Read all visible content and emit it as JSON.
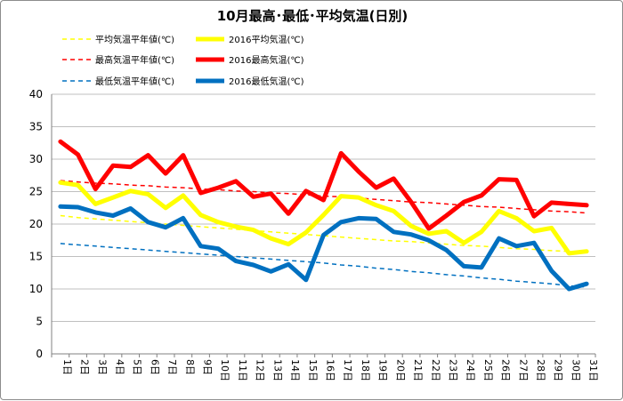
{
  "chart_data": {
    "type": "line",
    "title": "10月最高･最低･平均気温(日別)",
    "ylim": [
      0,
      40
    ],
    "yticks": [
      0,
      5,
      10,
      15,
      20,
      25,
      30,
      35,
      40
    ],
    "grid": "horizontal",
    "legend_position": "top",
    "categories": [
      "1日",
      "2日",
      "3日",
      "4日",
      "5日",
      "6日",
      "7日",
      "8日",
      "9日",
      "10日",
      "11日",
      "12日",
      "13日",
      "14日",
      "15日",
      "16日",
      "17日",
      "18日",
      "19日",
      "20日",
      "21日",
      "22日",
      "23日",
      "24日",
      "25日",
      "26日",
      "27日",
      "28日",
      "29日",
      "30日",
      "31日"
    ],
    "series": [
      {
        "name": "平均気温平年値(℃)",
        "color": "#ffff00",
        "style": "dashed",
        "values": [
          21.3,
          21.0,
          20.8,
          20.6,
          20.4,
          20.2,
          20.0,
          19.8,
          19.6,
          19.4,
          19.2,
          19.0,
          18.8,
          18.6,
          18.4,
          18.2,
          18.0,
          17.8,
          17.6,
          17.4,
          17.3,
          17.1,
          16.9,
          16.7,
          16.6,
          16.4,
          16.2,
          16.1,
          15.9,
          15.8,
          15.6
        ]
      },
      {
        "name": "2016平均気温(℃)",
        "color": "#ffff00",
        "style": "solid",
        "values": [
          26.4,
          26.0,
          23.1,
          24.1,
          25.1,
          24.6,
          22.5,
          24.4,
          21.4,
          20.3,
          19.6,
          19.1,
          17.8,
          16.9,
          18.7,
          21.4,
          24.3,
          24.1,
          22.9,
          22.0,
          19.7,
          18.5,
          18.9,
          17.1,
          18.8,
          22.0,
          20.9,
          18.9,
          19.4,
          15.5,
          15.8
        ]
      },
      {
        "name": "最高気温平年値(℃)",
        "color": "#ff0000",
        "style": "dashed",
        "values": [
          26.7,
          26.5,
          26.3,
          26.2,
          26.0,
          25.9,
          25.7,
          25.6,
          25.4,
          25.3,
          25.1,
          25.0,
          24.8,
          24.7,
          24.5,
          24.3,
          24.2,
          24.0,
          23.8,
          23.6,
          23.4,
          23.3,
          23.1,
          22.9,
          22.7,
          22.6,
          22.4,
          22.2,
          22.0,
          21.9,
          21.7
        ]
      },
      {
        "name": "2016最高気温(℃)",
        "color": "#ff0000",
        "style": "solid",
        "values": [
          32.7,
          30.7,
          25.4,
          29.0,
          28.8,
          30.6,
          27.8,
          30.6,
          24.8,
          25.6,
          26.6,
          24.2,
          24.7,
          21.6,
          25.1,
          23.7,
          30.9,
          28.1,
          25.6,
          27.0,
          23.4,
          19.3,
          21.3,
          23.4,
          24.4,
          26.9,
          26.8,
          21.2,
          23.3,
          23.1,
          22.9
        ]
      },
      {
        "name": "最低気温平年値(℃)",
        "color": "#0070c0",
        "style": "dashed",
        "values": [
          17.0,
          16.8,
          16.6,
          16.4,
          16.2,
          16.0,
          15.8,
          15.6,
          15.4,
          15.2,
          15.0,
          14.8,
          14.6,
          14.4,
          14.2,
          14.0,
          13.7,
          13.5,
          13.2,
          13.0,
          12.7,
          12.5,
          12.2,
          12.0,
          11.7,
          11.5,
          11.2,
          11.0,
          10.8,
          10.5,
          10.3
        ]
      },
      {
        "name": "2016最低気温(℃)",
        "color": "#0070c0",
        "style": "solid",
        "values": [
          22.7,
          22.6,
          21.8,
          21.3,
          22.4,
          20.3,
          19.5,
          20.9,
          16.6,
          16.2,
          14.3,
          13.7,
          12.7,
          13.8,
          11.4,
          18.3,
          20.3,
          20.9,
          20.8,
          18.8,
          18.4,
          17.5,
          16.0,
          13.5,
          13.3,
          17.8,
          16.6,
          17.1,
          12.8,
          10.0,
          10.8
        ]
      }
    ]
  },
  "legend_order": [
    0,
    1,
    2,
    3,
    4,
    5
  ]
}
